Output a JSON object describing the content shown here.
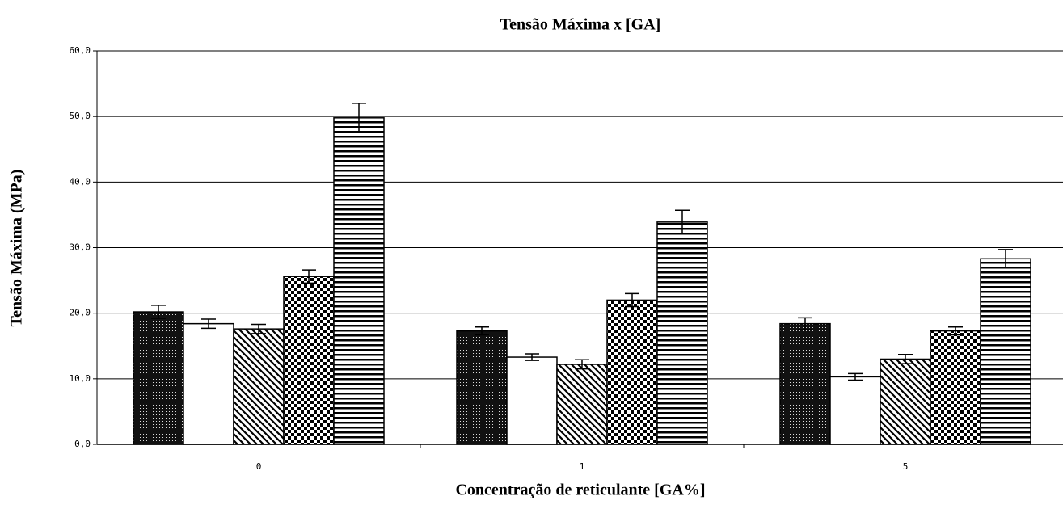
{
  "chart_data": {
    "type": "bar",
    "title": "Tensão Máxima x [GA]",
    "x_label": "Concentração de reticulante [GA%]",
    "y_label": "Tensão Máxima (MPa)",
    "categories": [
      "0",
      "1",
      "5"
    ],
    "ylim": [
      0,
      60
    ],
    "yticks": [
      {
        "value": 0,
        "label": "0,0"
      },
      {
        "value": 10,
        "label": "10,0"
      },
      {
        "value": 20,
        "label": "20,0"
      },
      {
        "value": 30,
        "label": "30,0"
      },
      {
        "value": 40,
        "label": "40,0"
      },
      {
        "value": 50,
        "label": "50,0"
      },
      {
        "value": 60,
        "label": "60,0"
      }
    ],
    "grid": true,
    "series": [
      {
        "pattern": "dots",
        "values": [
          20.2,
          17.3,
          18.4
        ],
        "errors": [
          1.0,
          0.6,
          0.9
        ]
      },
      {
        "pattern": "white",
        "values": [
          18.4,
          13.3,
          10.3
        ],
        "errors": [
          0.7,
          0.5,
          0.5
        ]
      },
      {
        "pattern": "diagonal",
        "values": [
          17.6,
          12.2,
          13.0
        ],
        "errors": [
          0.7,
          0.7,
          0.7
        ]
      },
      {
        "pattern": "checker",
        "values": [
          25.6,
          22.0,
          17.3
        ],
        "errors": [
          1.0,
          1.0,
          0.6
        ]
      },
      {
        "pattern": "horizontal",
        "values": [
          49.8,
          33.9,
          28.3
        ],
        "errors": [
          2.2,
          1.8,
          1.4
        ]
      }
    ]
  }
}
